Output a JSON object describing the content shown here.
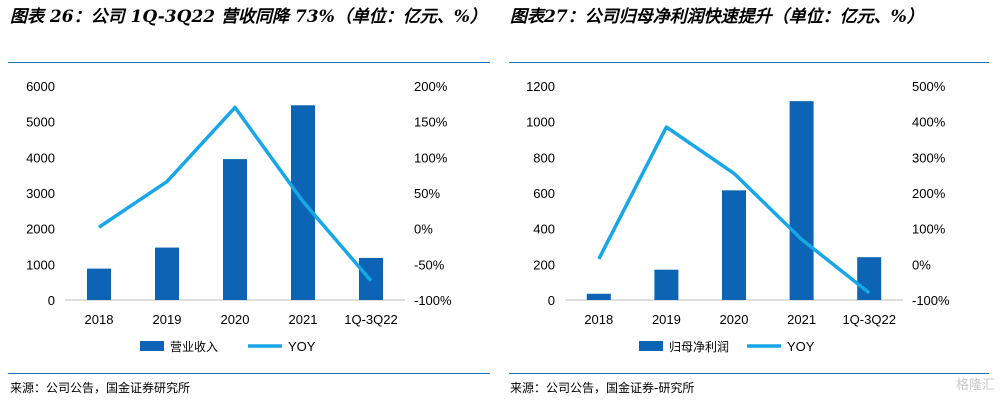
{
  "panels": [
    {
      "title": "图表 26：公司 1Q-3Q22 营收同降 73%（单位：亿元、%）",
      "source": "来源：公司公告，国金证券研究所",
      "chart_data": {
        "type": "bar",
        "categories": [
          "2018",
          "2019",
          "2020",
          "2021",
          "1Q-3Q22"
        ],
        "series": [
          {
            "name": "营业收入",
            "type": "bar",
            "axis": "left",
            "values": [
              880,
              1470,
              3950,
              5460,
              1180
            ]
          },
          {
            "name": "YOY",
            "type": "line",
            "axis": "right",
            "values": [
              2,
              66,
              170,
              38,
              -73
            ]
          }
        ],
        "y_left": {
          "min": 0,
          "max": 6000,
          "ticks": [
            0,
            1000,
            2000,
            3000,
            4000,
            5000,
            6000
          ]
        },
        "y_right": {
          "min": -100,
          "max": 200,
          "ticks": [
            "-100%",
            "-50%",
            "0%",
            "50%",
            "100%",
            "150%",
            "200%"
          ]
        },
        "legend_position": "bottom",
        "colors": {
          "bar": "#0e64b4",
          "line": "#17a6e8"
        }
      }
    },
    {
      "title": "图表27：公司归母净利润快速提升（单位：亿元、%）",
      "source": "来源：公司公告，国金证券-研究所",
      "chart_data": {
        "type": "bar",
        "categories": [
          "2018",
          "2019",
          "2020",
          "2021",
          "1Q-3Q22"
        ],
        "series": [
          {
            "name": "归母净利润",
            "type": "bar",
            "axis": "left",
            "values": [
              35,
              170,
              615,
              1115,
              240
            ]
          },
          {
            "name": "YOY",
            "type": "line",
            "axis": "right",
            "values": [
              15,
              385,
              255,
              70,
              -80
            ]
          }
        ],
        "y_left": {
          "min": 0,
          "max": 1200,
          "ticks": [
            0,
            200,
            400,
            600,
            800,
            1000,
            1200
          ]
        },
        "y_right": {
          "min": -100,
          "max": 500,
          "ticks": [
            "-100%",
            "0%",
            "100%",
            "200%",
            "300%",
            "400%",
            "500%"
          ]
        },
        "legend_position": "bottom",
        "colors": {
          "bar": "#0e64b4",
          "line": "#17a6e8"
        }
      }
    }
  ],
  "watermark": "格隆汇"
}
